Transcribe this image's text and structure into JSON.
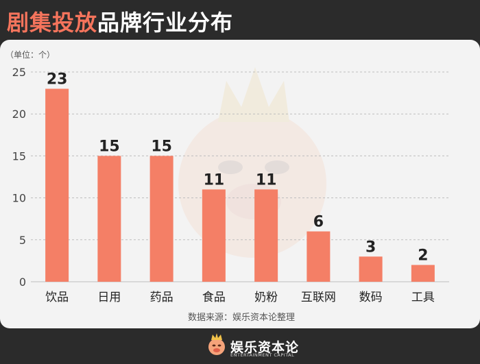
{
  "header": {
    "title_accent": "剧集投放",
    "title_rest": "品牌行业分布"
  },
  "chart_data": {
    "type": "bar",
    "unit_label": "（单位：个）",
    "categories": [
      "饮品",
      "日用",
      "药品",
      "食品",
      "奶粉",
      "互联网",
      "数码",
      "工具"
    ],
    "values": [
      23,
      15,
      15,
      11,
      11,
      6,
      3,
      2
    ],
    "ylim": [
      0,
      25
    ],
    "yticks": [
      0,
      5,
      10,
      15,
      20,
      25
    ],
    "grid": true,
    "bar_color": "#f47f66",
    "source": "数据来源：娱乐资本论整理"
  },
  "footer": {
    "logo_text": "娱乐资本论",
    "logo_sub": "ENTERTAINMENT CAPITAL"
  },
  "colors": {
    "accent": "#f5745c",
    "background": "#2b2b2b",
    "panel": "#f3f3f3"
  }
}
